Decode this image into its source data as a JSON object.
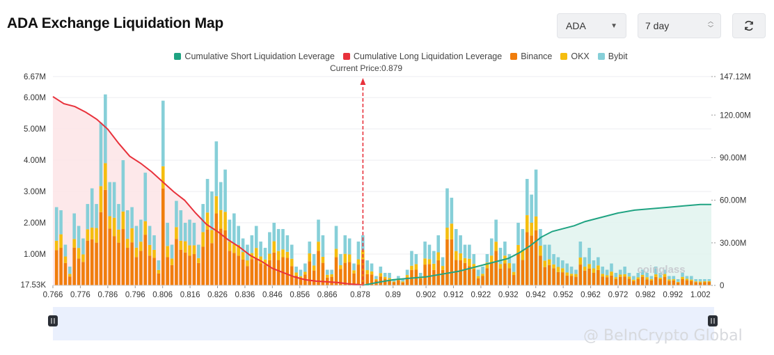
{
  "header": {
    "title": "ADA Exchange Liquidation Map",
    "coin_select": "ADA",
    "range_select": "7 day"
  },
  "icons": {
    "coin_caret": "caret-down-icon",
    "range_updown": "updown-chevron-icon",
    "refresh": "refresh-icon"
  },
  "legend": [
    {
      "label": "Cumulative Short Liquidation Leverage",
      "color": "#1fa382"
    },
    {
      "label": "Cumulative Long Liquidation Leverage",
      "color": "#e8313b"
    },
    {
      "label": "Binance",
      "color": "#f07d0c"
    },
    {
      "label": "OKX",
      "color": "#f5bd0f"
    },
    {
      "label": "Bybit",
      "color": "#86cfd8"
    }
  ],
  "current_price_label": "Current Price:0.879",
  "watermarks": {
    "chart": "coinglass",
    "image": "@ BeInCrypto Global"
  },
  "chart_data": {
    "type": "bar",
    "title": "ADA Exchange Liquidation Map",
    "current_price": 0.879,
    "x_tick_labels": [
      "0.766",
      "0.776",
      "0.786",
      "0.796",
      "0.806",
      "0.816",
      "0.826",
      "0.836",
      "0.846",
      "0.856",
      "0.866",
      "0.878",
      "0.89",
      "0.902",
      "0.912",
      "0.922",
      "0.932",
      "0.942",
      "0.952",
      "0.962",
      "0.972",
      "0.982",
      "0.992",
      "1.002"
    ],
    "x_tick_values": [
      0.766,
      0.776,
      0.786,
      0.796,
      0.806,
      0.816,
      0.826,
      0.836,
      0.846,
      0.856,
      0.866,
      0.878,
      0.89,
      0.902,
      0.912,
      0.922,
      0.932,
      0.942,
      0.952,
      0.962,
      0.972,
      0.982,
      0.992,
      1.002
    ],
    "xlim": [
      0.766,
      1.006
    ],
    "y_left_ticks": [
      "6.67M",
      "6.00M",
      "5.00M",
      "4.00M",
      "3.00M",
      "2.00M",
      "1.00M",
      "17.53K"
    ],
    "y_left_values": [
      6.67,
      6.0,
      5.0,
      4.0,
      3.0,
      2.0,
      1.0,
      0.0175
    ],
    "ylim_left_millions": [
      0,
      6.67
    ],
    "y_right_ticks": [
      "147.12M",
      "120.00M",
      "90.00M",
      "60.00M",
      "30.00M",
      "0"
    ],
    "y_right_values": [
      147.12,
      120,
      90,
      60,
      30,
      0
    ],
    "ylim_right_millions": [
      0,
      147.12
    ],
    "grid": true,
    "legend_position": "top-center",
    "colors": {
      "binance": "#f07d0c",
      "okx": "#f5bd0f",
      "bybit": "#86cfd8",
      "long": "#e8313b",
      "short": "#1fa382"
    },
    "bars_total_millions": [
      2.5,
      2.4,
      1.3,
      0.6,
      2.3,
      1.9,
      1.5,
      2.6,
      3.1,
      2.6,
      5.2,
      6.1,
      3.3,
      3.3,
      2.6,
      4.0,
      2.4,
      2.5,
      1.9,
      2.1,
      3.6,
      1.9,
      1.6,
      0.8,
      5.9,
      2.0,
      1.3,
      2.7,
      2.4,
      2.0,
      2.1,
      2.0,
      1.3,
      2.6,
      3.4,
      3.0,
      4.6,
      3.3,
      3.7,
      2.1,
      2.3,
      1.9,
      1.5,
      1.3,
      1.6,
      1.9,
      1.4,
      1.2,
      1.7,
      2.0,
      1.8,
      1.8,
      1.6,
      1.3,
      0.6,
      0.5,
      0.7,
      1.4,
      1.0,
      2.1,
      1.6,
      0.5,
      0.5,
      1.9,
      1.0,
      1.6,
      1.5,
      0.7,
      1.4,
      1.6,
      0.8,
      0.7,
      0.3,
      0.6,
      0.4,
      0.4,
      0.2,
      0.3,
      0.2,
      0.5,
      1.1,
      1.0,
      0.4,
      1.4,
      1.3,
      1.1,
      1.6,
      0.9,
      3.1,
      2.8,
      1.8,
      1.6,
      1.3,
      1.3,
      1.0,
      0.5,
      0.6,
      1.0,
      1.5,
      2.1,
      1.2,
      1.4,
      1.0,
      0.7,
      2.0,
      1.8,
      3.4,
      2.9,
      3.7,
      1.8,
      1.3,
      1.3,
      1.0,
      0.9,
      0.8,
      0.7,
      0.6,
      0.5,
      1.4,
      0.9,
      1.2,
      0.8,
      0.9,
      0.6,
      0.5,
      0.7,
      0.4,
      0.5,
      0.6,
      0.4,
      0.3,
      0.4,
      0.5,
      0.4,
      0.3,
      0.6,
      0.4,
      0.5,
      0.3,
      0.3,
      0.2,
      0.4,
      0.3,
      0.3,
      0.2,
      0.2,
      0.2,
      0.2
    ],
    "long_cumulative": {
      "x": [
        0.766,
        0.77,
        0.774,
        0.778,
        0.782,
        0.786,
        0.79,
        0.794,
        0.798,
        0.802,
        0.806,
        0.81,
        0.814,
        0.818,
        0.822,
        0.826,
        0.83,
        0.834,
        0.838,
        0.842,
        0.846,
        0.85,
        0.854,
        0.858,
        0.862,
        0.866,
        0.87,
        0.874,
        0.878,
        0.879
      ],
      "y_millions": [
        133,
        128,
        126,
        122,
        117,
        110,
        100,
        91,
        86,
        80,
        73,
        66,
        60,
        51,
        43,
        38,
        32,
        27,
        21,
        17,
        12,
        9,
        6,
        4,
        3,
        2.5,
        2,
        1,
        0.5,
        0
      ]
    },
    "short_cumulative": {
      "x": [
        0.879,
        0.884,
        0.89,
        0.896,
        0.902,
        0.908,
        0.914,
        0.92,
        0.926,
        0.932,
        0.936,
        0.94,
        0.944,
        0.948,
        0.952,
        0.956,
        0.96,
        0.966,
        0.972,
        0.978,
        0.984,
        0.99,
        0.996,
        1.002,
        1.006
      ],
      "y_millions": [
        0,
        2,
        4,
        5,
        6,
        8,
        10,
        13,
        16,
        19,
        23,
        28,
        34,
        38,
        40,
        42,
        45,
        48,
        51,
        53,
        54,
        55,
        56,
        57,
        57
      ]
    }
  }
}
